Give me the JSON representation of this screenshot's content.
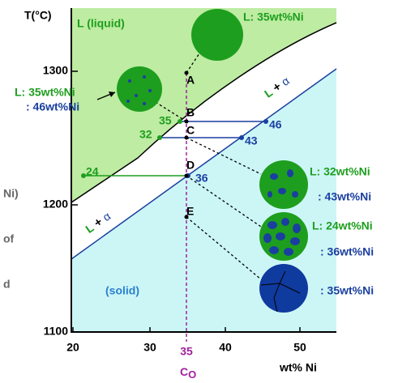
{
  "axes": {
    "y_title": "T(°C)",
    "x_title": "wt% Ni",
    "y_ticks": [
      "1300",
      "1200",
      "1100"
    ],
    "x_ticks": [
      "20",
      "30",
      "40",
      "50"
    ]
  },
  "composition": {
    "value": "35",
    "symbol": "C",
    "subscript": "O"
  },
  "regions": {
    "liquid": "L (liquid)",
    "solid": "(solid)",
    "two_phase": [
      "L",
      " + ",
      "α"
    ]
  },
  "points": [
    "A",
    "B",
    "C",
    "D",
    "E"
  ],
  "tie_lines": [
    {
      "liquid": "35",
      "solid": "46"
    },
    {
      "liquid": "32",
      "solid": "43"
    },
    {
      "liquid": "24",
      "solid": "36"
    }
  ],
  "notes": {
    "top": "L: 35wt%Ni",
    "b_liquid": "L: 35wt%Ni",
    "b_solid": ": 46wt%Ni",
    "c_liquid": "L:  32wt%Ni",
    "c_solid": ": 43wt%Ni",
    "d_liquid": "L: 24wt%Ni",
    "d_solid": ": 36wt%Ni",
    "e_solid": ": 35wt%Ni"
  },
  "fragments": [
    "Ni)",
    "of",
    "d"
  ]
}
